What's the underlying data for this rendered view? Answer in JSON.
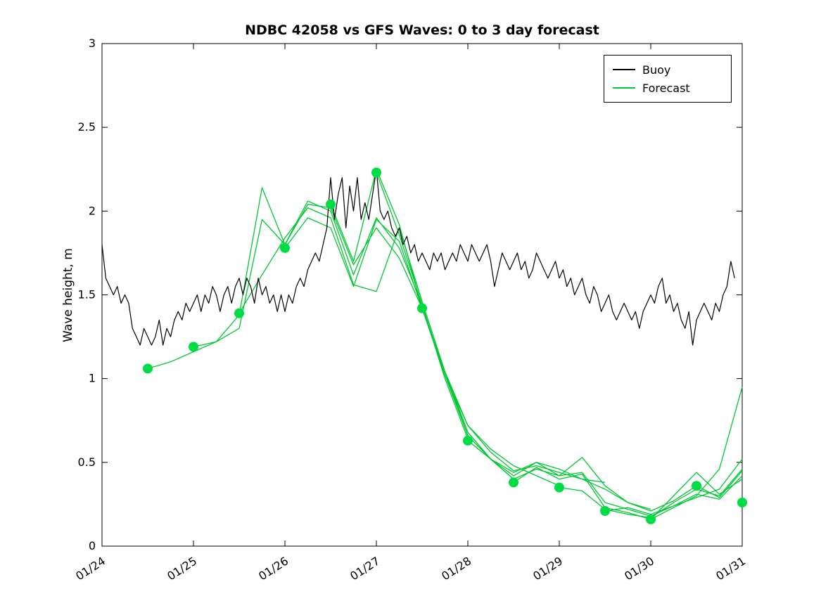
{
  "chart_data": {
    "type": "line",
    "title": "NDBC 42058 vs GFS Waves: 0 to 3 day forecast",
    "xlabel": "",
    "ylabel": "Wave height, m",
    "xlim": [
      24,
      31
    ],
    "ylim": [
      0,
      3
    ],
    "grid": false,
    "legend_position": "top-right",
    "x_tick_values": [
      24,
      25,
      26,
      27,
      28,
      29,
      30,
      31
    ],
    "x_tick_labels": [
      "01/24",
      "01/25",
      "01/26",
      "01/27",
      "01/28",
      "01/29",
      "01/30",
      "01/31"
    ],
    "y_tick_values": [
      0,
      0.5,
      1,
      1.5,
      2,
      2.5,
      3
    ],
    "y_tick_labels": [
      "0",
      "0.5",
      "1",
      "1.5",
      "2",
      "2.5",
      "3"
    ],
    "colors": {
      "buoy": "#000000",
      "forecast": "#00c832",
      "marker": "#00dd44"
    },
    "legend": [
      {
        "label": "Buoy",
        "color": "#000000"
      },
      {
        "label": "Forecast",
        "color": "#00c832"
      }
    ],
    "buoy": {
      "name": "Buoy",
      "x_start_day": 24.0,
      "x_step_days": 0.0416667,
      "values": [
        1.8,
        1.6,
        1.55,
        1.5,
        1.55,
        1.45,
        1.5,
        1.45,
        1.3,
        1.25,
        1.2,
        1.3,
        1.25,
        1.2,
        1.25,
        1.35,
        1.2,
        1.3,
        1.25,
        1.35,
        1.4,
        1.35,
        1.45,
        1.4,
        1.45,
        1.5,
        1.4,
        1.5,
        1.45,
        1.55,
        1.5,
        1.4,
        1.5,
        1.55,
        1.45,
        1.55,
        1.6,
        1.5,
        1.6,
        1.55,
        1.45,
        1.6,
        1.5,
        1.55,
        1.45,
        1.5,
        1.4,
        1.5,
        1.4,
        1.5,
        1.45,
        1.55,
        1.6,
        1.55,
        1.65,
        1.7,
        1.75,
        1.7,
        1.8,
        1.9,
        2.2,
        1.95,
        2.1,
        2.2,
        1.9,
        2.15,
        2.0,
        2.2,
        1.95,
        2.05,
        1.95,
        2.1,
        2.25,
        2.0,
        1.95,
        2.0,
        1.9,
        1.85,
        1.9,
        1.8,
        1.85,
        1.75,
        1.8,
        1.7,
        1.75,
        1.7,
        1.65,
        1.75,
        1.7,
        1.75,
        1.65,
        1.7,
        1.75,
        1.7,
        1.8,
        1.75,
        1.7,
        1.8,
        1.75,
        1.7,
        1.75,
        1.8,
        1.7,
        1.55,
        1.65,
        1.75,
        1.7,
        1.65,
        1.7,
        1.75,
        1.65,
        1.7,
        1.6,
        1.65,
        1.75,
        1.7,
        1.65,
        1.6,
        1.65,
        1.7,
        1.6,
        1.65,
        1.55,
        1.6,
        1.5,
        1.55,
        1.6,
        1.5,
        1.45,
        1.55,
        1.5,
        1.4,
        1.45,
        1.5,
        1.4,
        1.35,
        1.4,
        1.45,
        1.4,
        1.35,
        1.4,
        1.3,
        1.4,
        1.45,
        1.5,
        1.45,
        1.55,
        1.6,
        1.45,
        1.5,
        1.4,
        1.45,
        1.35,
        1.3,
        1.4,
        1.2,
        1.35,
        1.4,
        1.45,
        1.4,
        1.35,
        1.45,
        1.4,
        1.5,
        1.55,
        1.7,
        1.6
      ]
    },
    "forecast_runs": [
      {
        "x": [
          24.5,
          24.75,
          25.0,
          25.25,
          25.5,
          25.75,
          26.0,
          26.25,
          26.5,
          26.75,
          27.0,
          27.25,
          27.5
        ],
        "y": [
          1.06,
          1.1,
          1.16,
          1.22,
          1.38,
          2.14,
          1.8,
          2.04,
          2.02,
          1.68,
          1.9,
          1.72,
          1.42
        ]
      },
      {
        "x": [
          25.0,
          25.25,
          25.5,
          25.75,
          26.0,
          26.25,
          26.5,
          26.75,
          27.0,
          27.25,
          27.5,
          27.75,
          28.0
        ],
        "y": [
          1.19,
          1.22,
          1.3,
          1.95,
          1.8,
          2.06,
          2.0,
          1.62,
          1.96,
          1.78,
          1.44,
          1.0,
          0.64
        ]
      },
      {
        "x": [
          25.5,
          25.75,
          26.0,
          26.25,
          26.5,
          26.75,
          27.0,
          27.25,
          27.5,
          27.75,
          28.0,
          28.25,
          28.5
        ],
        "y": [
          1.39,
          1.62,
          1.84,
          2.02,
          1.96,
          1.56,
          1.52,
          1.9,
          1.46,
          1.04,
          0.66,
          0.52,
          0.4
        ]
      },
      {
        "x": [
          26.0,
          26.25,
          26.5,
          26.75,
          27.0,
          27.25,
          27.5,
          27.75,
          28.0,
          28.25,
          28.5,
          28.75,
          29.0
        ],
        "y": [
          1.78,
          1.96,
          1.9,
          1.55,
          1.95,
          1.82,
          1.42,
          1.02,
          0.72,
          0.58,
          0.48,
          0.42,
          0.36
        ]
      },
      {
        "x": [
          26.5,
          26.75,
          27.0,
          27.25,
          27.5,
          27.75,
          28.0,
          28.25,
          28.5,
          28.75,
          29.0,
          29.25,
          29.5
        ],
        "y": [
          2.04,
          1.7,
          2.25,
          1.92,
          1.42,
          1.04,
          0.72,
          0.56,
          0.45,
          0.48,
          0.44,
          0.4,
          0.38
        ]
      },
      {
        "x": [
          27.0,
          27.25,
          27.5,
          27.75,
          28.0,
          28.25,
          28.5,
          28.75,
          29.0,
          29.25,
          29.5,
          29.75,
          30.0
        ],
        "y": [
          2.23,
          1.86,
          1.44,
          1.02,
          0.66,
          0.52,
          0.42,
          0.5,
          0.46,
          0.4,
          0.34,
          0.26,
          0.22
        ]
      },
      {
        "x": [
          27.5,
          27.75,
          28.0,
          28.25,
          28.5,
          28.75,
          29.0,
          29.25,
          29.5,
          29.75,
          30.0,
          30.25,
          30.5
        ],
        "y": [
          1.42,
          1.04,
          0.68,
          0.52,
          0.4,
          0.46,
          0.42,
          0.53,
          0.36,
          0.26,
          0.21,
          0.27,
          0.36
        ]
      },
      {
        "x": [
          28.0,
          28.25,
          28.5,
          28.75,
          29.0,
          29.25,
          29.5,
          29.75,
          30.0,
          30.25,
          30.5,
          30.75,
          31.0
        ],
        "y": [
          0.63,
          0.52,
          0.44,
          0.5,
          0.42,
          0.44,
          0.26,
          0.22,
          0.18,
          0.24,
          0.31,
          0.28,
          0.42
        ]
      },
      {
        "x": [
          28.5,
          28.75,
          29.0,
          29.25,
          29.5,
          29.75,
          30.0,
          30.25,
          30.5,
          30.75,
          31.0
        ],
        "y": [
          0.38,
          0.47,
          0.4,
          0.43,
          0.23,
          0.2,
          0.16,
          0.3,
          0.44,
          0.31,
          0.4
        ]
      },
      {
        "x": [
          29.0,
          29.25,
          29.5,
          29.75,
          30.0,
          30.25,
          30.5,
          30.75,
          31.0
        ],
        "y": [
          0.35,
          0.33,
          0.22,
          0.19,
          0.17,
          0.26,
          0.34,
          0.3,
          0.46
        ]
      },
      {
        "x": [
          29.5,
          29.75,
          30.0,
          30.25,
          30.5,
          30.75,
          31.0
        ],
        "y": [
          0.21,
          0.23,
          0.19,
          0.24,
          0.29,
          0.34,
          0.52
        ]
      },
      {
        "x": [
          30.0,
          30.25,
          30.5,
          30.75,
          31.0
        ],
        "y": [
          0.16,
          0.23,
          0.3,
          0.46,
          0.95
        ]
      },
      {
        "x": [
          30.5,
          30.75,
          31.0
        ],
        "y": [
          0.36,
          0.29,
          0.45
        ]
      }
    ],
    "forecast_markers": {
      "x": [
        24.5,
        25.0,
        25.5,
        26.0,
        26.5,
        27.0,
        27.5,
        28.0,
        28.5,
        29.0,
        29.5,
        30.0,
        30.5,
        31.0
      ],
      "y": [
        1.06,
        1.19,
        1.39,
        1.78,
        2.04,
        2.23,
        1.42,
        0.63,
        0.38,
        0.35,
        0.21,
        0.16,
        0.36,
        0.26
      ]
    }
  }
}
